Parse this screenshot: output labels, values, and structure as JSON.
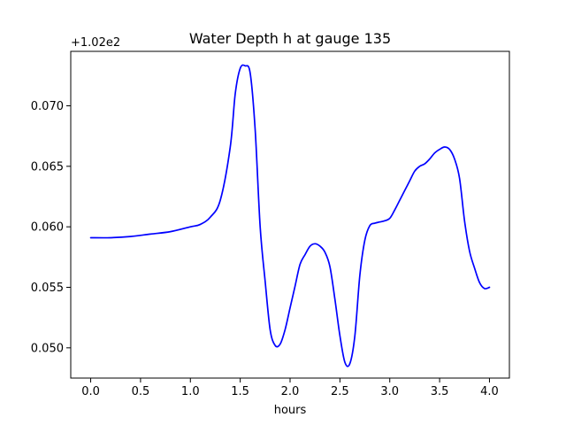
{
  "chart_data": {
    "type": "line",
    "title": "Water Depth h at gauge 135",
    "xlabel": "hours",
    "ylabel": "",
    "y_offset_label": "+1.02e2",
    "xlim": [
      -0.2,
      4.2
    ],
    "ylim": [
      0.0475,
      0.0745
    ],
    "xticks": [
      {
        "value": 0.0,
        "label": "0.0"
      },
      {
        "value": 0.5,
        "label": "0.5"
      },
      {
        "value": 1.0,
        "label": "1.0"
      },
      {
        "value": 1.5,
        "label": "1.5"
      },
      {
        "value": 2.0,
        "label": "2.0"
      },
      {
        "value": 2.5,
        "label": "2.5"
      },
      {
        "value": 3.0,
        "label": "3.0"
      },
      {
        "value": 3.5,
        "label": "3.5"
      },
      {
        "value": 4.0,
        "label": "4.0"
      }
    ],
    "yticks": [
      {
        "value": 0.05,
        "label": "0.050"
      },
      {
        "value": 0.055,
        "label": "0.055"
      },
      {
        "value": 0.06,
        "label": "0.060"
      },
      {
        "value": 0.065,
        "label": "0.065"
      },
      {
        "value": 0.07,
        "label": "0.070"
      }
    ],
    "grid": false,
    "series": [
      {
        "color": "#0000ff",
        "x": [
          0.0,
          0.2,
          0.4,
          0.6,
          0.8,
          1.0,
          1.1,
          1.2,
          1.3,
          1.4,
          1.45,
          1.5,
          1.55,
          1.6,
          1.65,
          1.7,
          1.75,
          1.8,
          1.85,
          1.9,
          1.95,
          2.0,
          2.05,
          2.1,
          2.15,
          2.2,
          2.25,
          2.3,
          2.35,
          2.4,
          2.45,
          2.5,
          2.55,
          2.6,
          2.65,
          2.7,
          2.75,
          2.8,
          2.85,
          2.9,
          2.95,
          3.0,
          3.05,
          3.1,
          3.15,
          3.2,
          3.25,
          3.3,
          3.35,
          3.4,
          3.45,
          3.5,
          3.55,
          3.6,
          3.65,
          3.7,
          3.75,
          3.8,
          3.85,
          3.9,
          3.95,
          4.0
        ],
        "y": [
          0.0591,
          0.0591,
          0.0592,
          0.0594,
          0.0596,
          0.06,
          0.0602,
          0.0608,
          0.0622,
          0.0666,
          0.071,
          0.0731,
          0.0733,
          0.0727,
          0.068,
          0.06,
          0.0555,
          0.0515,
          0.0502,
          0.0503,
          0.0515,
          0.0533,
          0.0551,
          0.0569,
          0.0577,
          0.0584,
          0.0586,
          0.0584,
          0.0579,
          0.0567,
          0.054,
          0.051,
          0.0488,
          0.0487,
          0.051,
          0.056,
          0.0589,
          0.0601,
          0.0603,
          0.0604,
          0.0605,
          0.0607,
          0.0614,
          0.0622,
          0.063,
          0.0638,
          0.0646,
          0.065,
          0.0652,
          0.0656,
          0.0661,
          0.0664,
          0.0666,
          0.0664,
          0.0656,
          0.064,
          0.0605,
          0.058,
          0.0566,
          0.0554,
          0.0549,
          0.055
        ]
      }
    ]
  }
}
